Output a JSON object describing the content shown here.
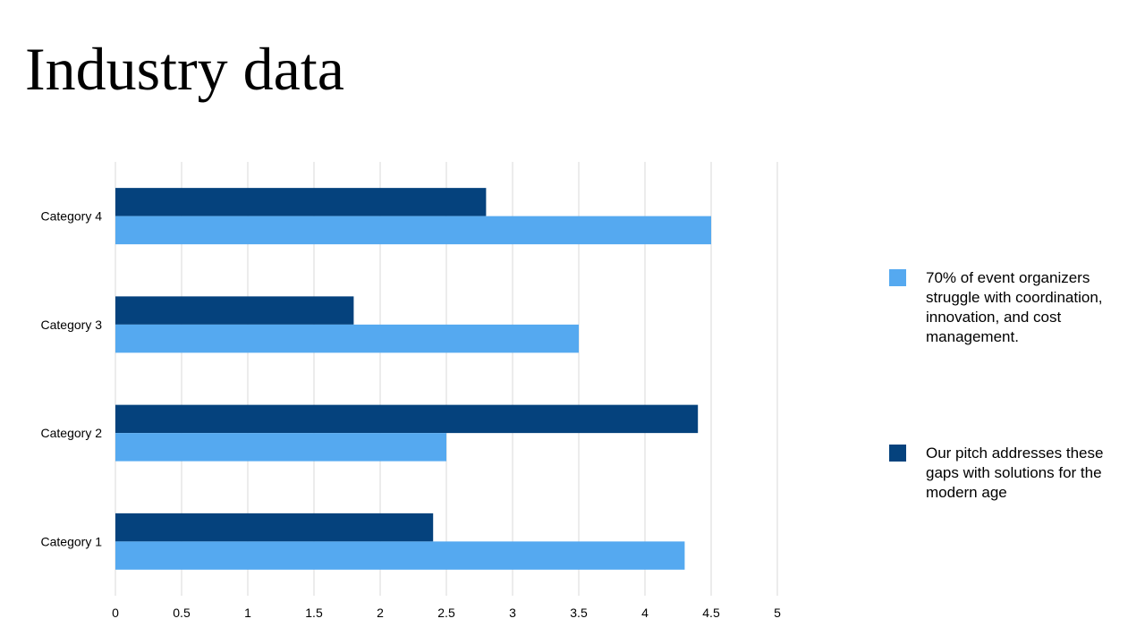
{
  "slide": {
    "title": "Industry data"
  },
  "colors": {
    "series1": "#55A9F0",
    "series2": "#05427D",
    "grid": "#D9D9D9"
  },
  "chart_data": {
    "type": "bar",
    "orientation": "horizontal",
    "categories": [
      "Category 1",
      "Category 2",
      "Category 3",
      "Category 4"
    ],
    "series": [
      {
        "name": "70% of event organizers struggle with coordination, innovation, and cost management.",
        "values": [
          4.3,
          2.5,
          3.5,
          4.5
        ]
      },
      {
        "name": "Our pitch addresses these gaps with solutions for the modern age",
        "values": [
          2.4,
          4.4,
          1.8,
          2.8
        ]
      }
    ],
    "xlim": [
      0,
      5
    ],
    "xticks": [
      "0",
      "0.5",
      "1",
      "1.5",
      "2",
      "2.5",
      "3",
      "3.5",
      "4",
      "4.5",
      "5"
    ],
    "grid": true,
    "legend": "right"
  }
}
